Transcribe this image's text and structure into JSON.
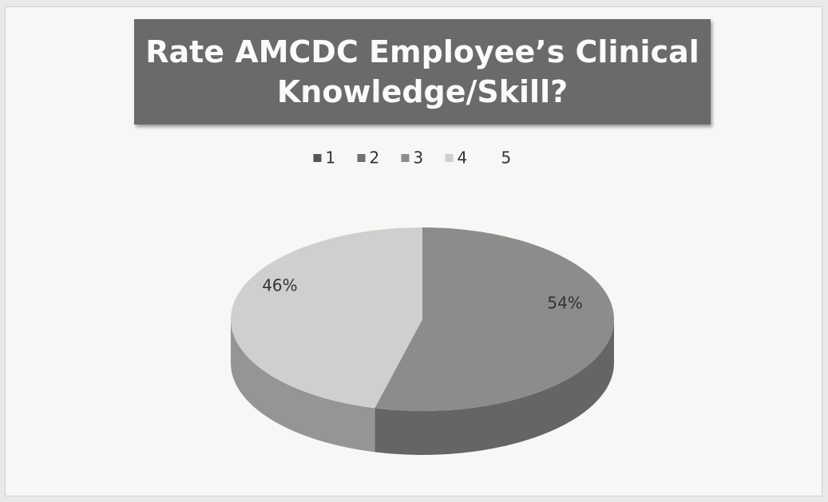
{
  "chart_data": {
    "type": "pie",
    "title": "Rate AMCDC Employee’s Clinical Knowledge/Skill?",
    "categories": [
      "1",
      "2",
      "3",
      "4",
      "5"
    ],
    "values": [
      0,
      0,
      54,
      46,
      0
    ],
    "value_labels": [
      null,
      null,
      "54%",
      "46%",
      null
    ],
    "colors": [
      "#555555",
      "#707070",
      "#8c8c8a",
      "#cfcfcd",
      "#f7f7f5"
    ],
    "legend": "top"
  }
}
